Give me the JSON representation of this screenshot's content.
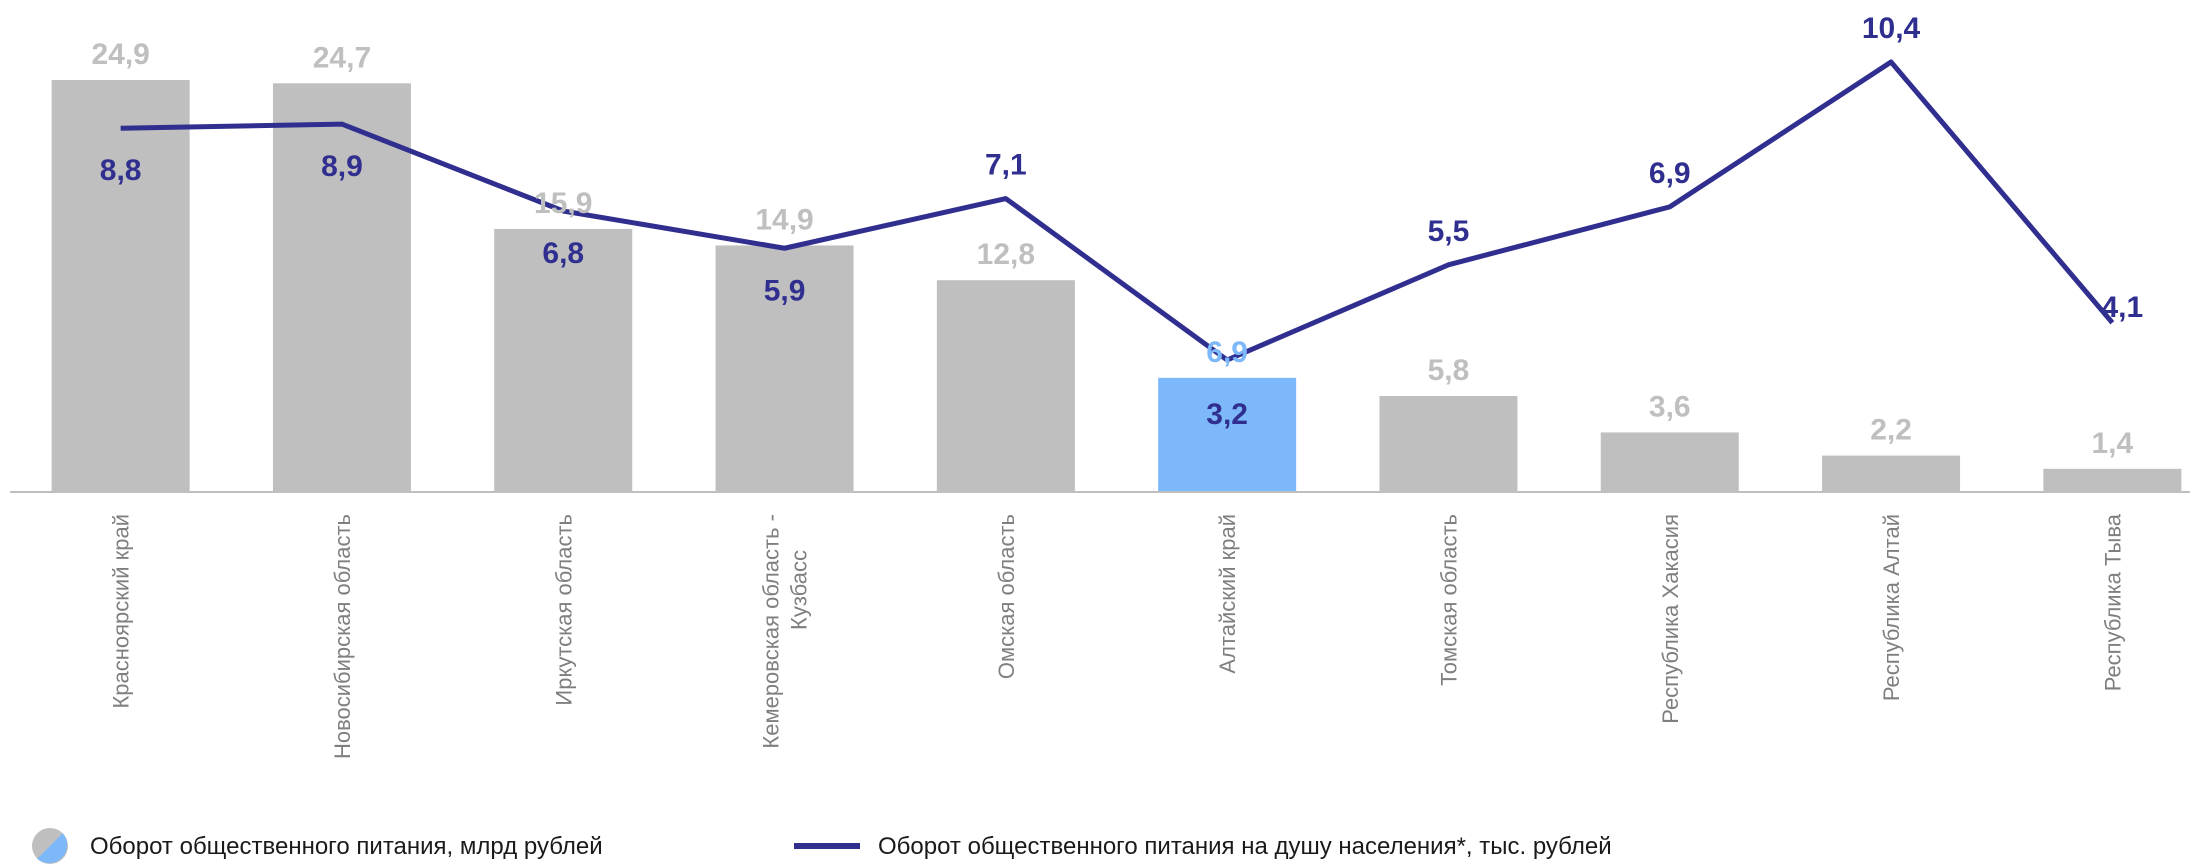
{
  "chart_data": {
    "type": "bar",
    "categories": [
      "Красноярский край",
      "Новосибирская область",
      "Иркутская область",
      "Кемеровская область - Кузбасс",
      "Омская область",
      "Алтайский край",
      "Томская область",
      "Республика Хакасия",
      "Республика Алтай",
      "Республика Тыва"
    ],
    "series": [
      {
        "name": "Оборот общественного питания, млрд рублей",
        "type": "bar",
        "values": [
          24.9,
          24.7,
          15.9,
          14.9,
          12.8,
          6.9,
          5.8,
          3.6,
          2.2,
          1.4
        ],
        "labels": [
          "24,9",
          "24,7",
          "15,9",
          "14,9",
          "12,8",
          "6,9",
          "5,8",
          "3,6",
          "2,2",
          "1,4"
        ],
        "color": "#bfbfbf",
        "highlight_index": 5,
        "highlight_color": "#7db8fa",
        "label_color": "#bfbfbf"
      },
      {
        "name": "Оборот общественного питания на душу населения*, тыс. рублей",
        "type": "line",
        "values": [
          8.8,
          8.9,
          6.8,
          5.9,
          7.1,
          3.2,
          5.5,
          6.9,
          10.4,
          4.1
        ],
        "labels": [
          "8,8",
          "8,9",
          "6,8",
          "5,9",
          "7,1",
          "3,2",
          "5,5",
          "6,9",
          "10,4",
          "4,1"
        ],
        "color": "#302f8f"
      }
    ],
    "title": "",
    "xlabel": "",
    "ylabel": "",
    "ylim_bars": [
      0,
      26
    ],
    "ylim_line": [
      0,
      12
    ],
    "grid": false,
    "legend_position": "bottom"
  }
}
